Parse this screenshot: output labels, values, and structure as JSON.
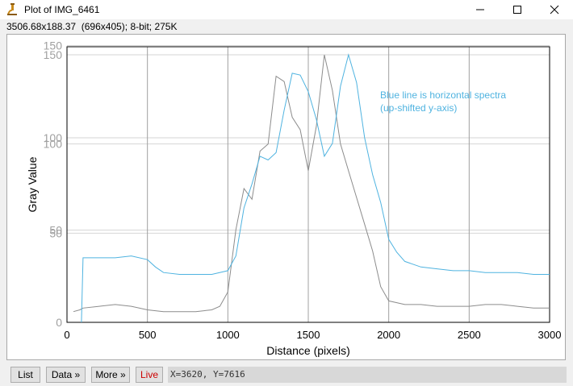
{
  "window": {
    "title": "Plot of IMG_6461",
    "app_icon": "microscope-icon",
    "controls": [
      "minimize-icon",
      "maximize-icon",
      "close-icon"
    ]
  },
  "info": {
    "text": "3506.68x188.37  (696x405); 8-bit; 275K"
  },
  "toolbar": {
    "list_label": "List",
    "data_label": "Data »",
    "more_label": "More »",
    "live_label": "Live",
    "coords_text": "X=3620, Y=7616"
  },
  "colors": {
    "gray_series": "#8c8c8c",
    "blue_series": "#4fb3e0",
    "annotation": "#4fb3e0",
    "grid": "#d6d6d6",
    "grid_major_x": "#a0a0a0",
    "live": "#cc0000"
  },
  "chart_data": {
    "type": "line",
    "xlabel": "Distance (pixels)",
    "ylabel": "Gray Value",
    "xlim": [
      0,
      3000
    ],
    "x_ticks": [
      "0",
      "500",
      "1000",
      "1500",
      "2000",
      "2500",
      "3000"
    ],
    "ylim_gray": [
      0,
      150
    ],
    "y_ticks_gray": [
      "0",
      "50",
      "100",
      "150"
    ],
    "ylim_blue": [
      0,
      145
    ],
    "y_ticks_blue": [
      "50",
      "100",
      "150"
    ],
    "annotation_lines": [
      "Blue line is horizontal spectra",
      "(up-shifted y-axis)"
    ],
    "grid": true,
    "series": [
      {
        "color_key": "gray_series",
        "scale": "gray",
        "x": [
          40,
          80,
          100,
          200,
          300,
          400,
          500,
          600,
          700,
          800,
          900,
          950,
          1000,
          1050,
          1100,
          1150,
          1200,
          1250,
          1300,
          1350,
          1400,
          1450,
          1500,
          1550,
          1600,
          1650,
          1700,
          1750,
          1800,
          1850,
          1900,
          1950,
          2000,
          2100,
          2200,
          2300,
          2400,
          2500,
          2600,
          2700,
          2800,
          2900,
          3000
        ],
        "y": [
          6,
          7,
          8,
          9,
          10,
          9,
          7,
          6,
          6,
          6,
          7,
          9,
          17,
          52,
          75,
          69,
          96,
          100,
          138,
          135,
          115,
          108,
          85,
          110,
          150,
          130,
          100,
          85,
          70,
          55,
          40,
          20,
          12,
          10,
          10,
          9,
          9,
          9,
          10,
          10,
          9,
          8,
          8
        ]
      },
      {
        "color_key": "blue_series",
        "scale": "blue",
        "x": [
          90,
          100,
          200,
          300,
          400,
          500,
          550,
          600,
          700,
          800,
          900,
          1000,
          1050,
          1100,
          1150,
          1200,
          1250,
          1300,
          1350,
          1400,
          1450,
          1500,
          1550,
          1600,
          1650,
          1700,
          1750,
          1800,
          1850,
          1900,
          1950,
          2000,
          2050,
          2100,
          2200,
          2300,
          2400,
          2500,
          2600,
          2700,
          2800,
          2900,
          3000
        ],
        "y": [
          0,
          35,
          35,
          35,
          36,
          34,
          30,
          27,
          26,
          26,
          26,
          28,
          36,
          62,
          75,
          90,
          88,
          92,
          115,
          135,
          134,
          125,
          110,
          90,
          97,
          128,
          145,
          130,
          100,
          80,
          65,
          45,
          38,
          33,
          30,
          29,
          28,
          28,
          27,
          27,
          27,
          26,
          26
        ]
      }
    ]
  }
}
